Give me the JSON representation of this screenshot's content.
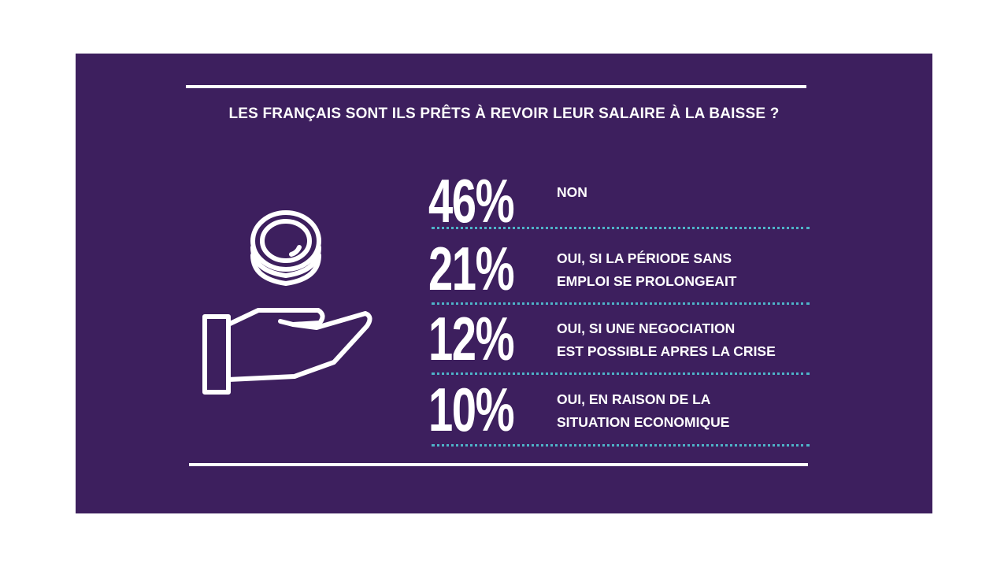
{
  "chart_data": {
    "type": "bar",
    "title": "LES FRANÇAIS SONT ILS PRÊTS À REVOIR LEUR SALAIRE À LA BAISSE ?",
    "categories": [
      "NON",
      "OUI, SI LA PÉRIODE SANS EMPLOI SE PROLONGEAIT",
      "OUI, SI UNE NEGOCIATION EST POSSIBLE APRES LA CRISE",
      "OUI, EN RAISON DE LA SITUATION ECONOMIQUE"
    ],
    "values": [
      46,
      21,
      12,
      10
    ],
    "display_values": [
      "46%",
      "21%",
      "12%",
      "10%"
    ],
    "labels": [
      [
        "NON"
      ],
      [
        "OUI, SI LA PÉRIODE SANS",
        "EMPLOI SE PROLONGEAIT"
      ],
      [
        "OUI, SI UNE NEGOCIATION",
        "EST POSSIBLE APRES LA CRISE"
      ],
      [
        "OUI, EN RAISON DE LA",
        "SITUATION ECONOMIQUE"
      ]
    ]
  },
  "colors": {
    "background": "#3d1f5e",
    "text": "#ffffff",
    "separator": "#4fb3c8"
  },
  "icon": "hand-holding-coins-icon"
}
